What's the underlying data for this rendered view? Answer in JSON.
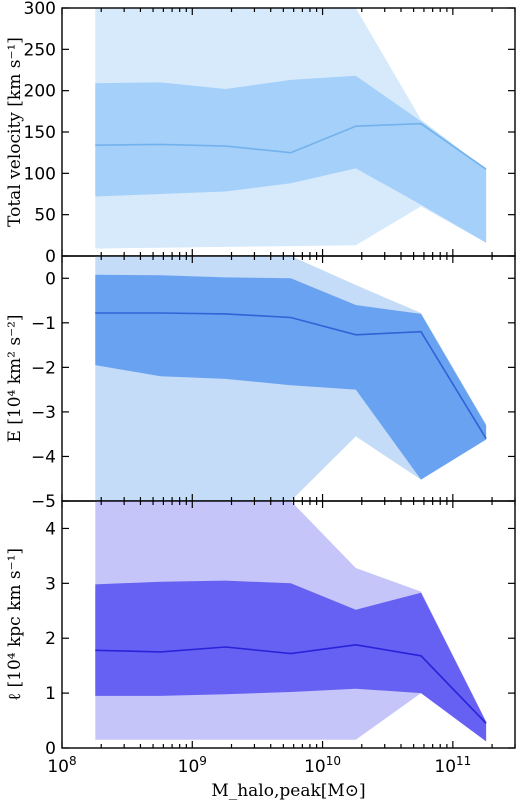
{
  "chart_data": {
    "type": "area",
    "x_scale": "log",
    "xlim": [
      100000000,
      300000000000
    ],
    "xlabel": "M_halo,peak[M⊙]",
    "x": [
      180000000,
      570000000,
      1800000000,
      5700000000,
      18000000000,
      57000000000,
      180000000000
    ],
    "x_tick_labels": [
      "10^8",
      "10^9",
      "10^10",
      "10^11"
    ],
    "x_tick_values": [
      100000000,
      1000000000,
      10000000000,
      100000000000
    ],
    "panels": [
      {
        "ylabel": "Total velocity [km s⁻¹]",
        "ylim": [
          0,
          300
        ],
        "yticks": [
          0,
          50,
          100,
          150,
          200,
          250,
          300
        ],
        "color_outer": "#d6eafc",
        "color_inner": "#a4d0fa",
        "color_line": "#73b2ec",
        "median": [
          134,
          135,
          133,
          125,
          157,
          160,
          105
        ],
        "inner_lower": [
          72,
          75,
          78,
          88,
          106,
          62,
          16
        ],
        "inner_upper": [
          209,
          210,
          202,
          213,
          218,
          163,
          105
        ],
        "outer_lower": [
          9,
          10,
          11,
          12,
          13,
          60,
          16
        ],
        "outer_upper": [
          300,
          300,
          300,
          300,
          300,
          165,
          105
        ]
      },
      {
        "ylabel": "E [10⁴ km² s⁻²]",
        "ylim": [
          -5,
          0.5
        ],
        "yticks": [
          0,
          -1,
          -2,
          -3,
          -4,
          -5
        ],
        "color_outer": "#c4dcf7",
        "color_inner": "#6aa2f2",
        "color_line": "#2f63d6",
        "median": [
          -0.78,
          -0.78,
          -0.8,
          -0.88,
          -1.27,
          -1.2,
          -3.6
        ],
        "inner_lower": [
          -1.95,
          -2.2,
          -2.26,
          -2.4,
          -2.5,
          -4.52,
          -3.62
        ],
        "inner_upper": [
          0.08,
          0.07,
          0.02,
          0.0,
          -0.6,
          -0.8,
          -3.3
        ],
        "outer_lower": [
          -5,
          -5,
          -5,
          -5,
          -3.55,
          -4.52,
          -3.62
        ],
        "outer_upper": [
          0.5,
          0.5,
          0.5,
          0.5,
          -0.15,
          -0.78,
          -3.28
        ]
      },
      {
        "ylabel": "ℓ [10⁴ kpc km s⁻¹]",
        "ylim": [
          0,
          4.5
        ],
        "yticks": [
          0,
          1,
          2,
          3,
          4
        ],
        "color_outer": "#c6c5fa",
        "color_inner": "#6661f3",
        "color_line": "#2a22d9",
        "median": [
          1.78,
          1.75,
          1.84,
          1.72,
          1.88,
          1.68,
          0.45
        ],
        "inner_lower": [
          0.95,
          0.95,
          0.98,
          1.02,
          1.08,
          1.0,
          0.12
        ],
        "inner_upper": [
          2.98,
          3.03,
          3.05,
          3.0,
          2.52,
          2.83,
          0.48
        ],
        "outer_lower": [
          0.15,
          0.15,
          0.15,
          0.15,
          0.15,
          1.0,
          0.12
        ],
        "outer_upper": [
          4.5,
          4.5,
          4.5,
          4.5,
          3.28,
          2.85,
          0.48
        ]
      }
    ]
  }
}
